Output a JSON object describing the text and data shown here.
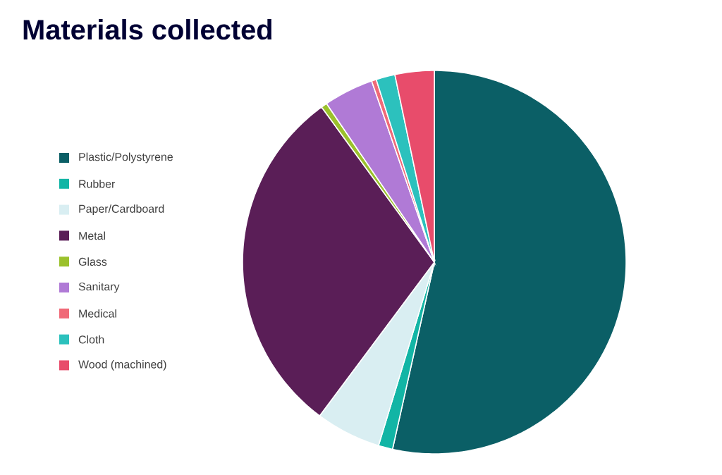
{
  "chart_data": {
    "type": "pie",
    "title": "Materials collected",
    "legend": "left",
    "categories": [
      "Plastic/Polystyrene",
      "Rubber",
      "Paper/Cardboard",
      "Metal",
      "Glass",
      "Sanitary",
      "Medical",
      "Cloth",
      "Wood (machined)"
    ],
    "values": [
      53.5,
      1.2,
      5.5,
      29.8,
      0.5,
      4.2,
      0.4,
      1.6,
      3.3
    ],
    "colors": [
      "#0b5f66",
      "#12b5a5",
      "#d9eef2",
      "#5a1e57",
      "#9bc12c",
      "#b07ad6",
      "#f06a78",
      "#2cc1bd",
      "#e84c6b"
    ]
  }
}
